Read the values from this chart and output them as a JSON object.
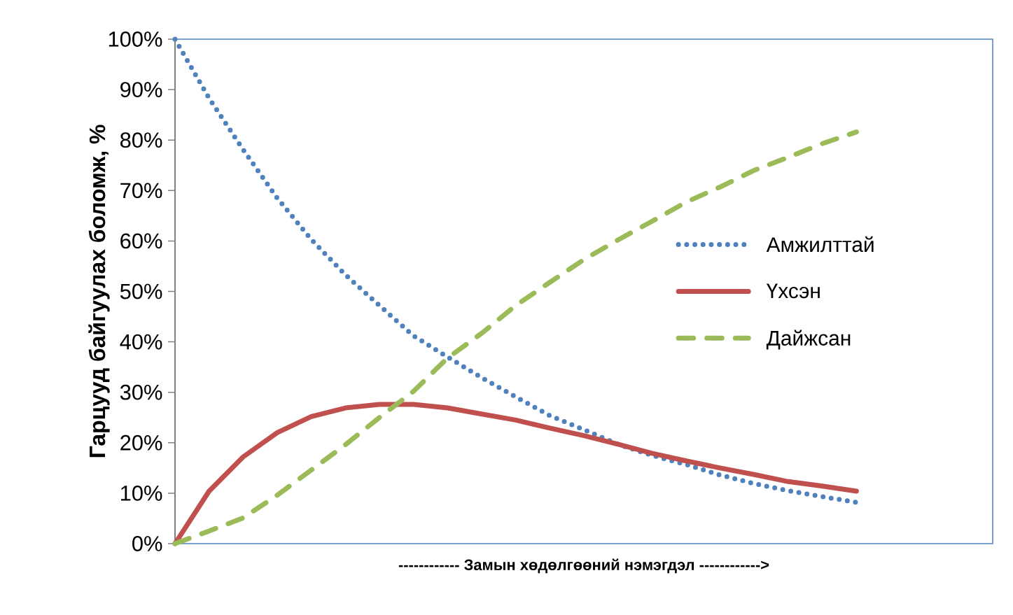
{
  "chart_data": {
    "type": "line",
    "xlabel": "------------   Замын хөдөлгөөний нэмэгдэл   ------------>",
    "ylabel": "Гарцууд байгуулах боломж, %",
    "categories": [
      null,
      null,
      null,
      null,
      null,
      null,
      null,
      null,
      null,
      null,
      null,
      null,
      null,
      null,
      null,
      null,
      null,
      null,
      null,
      null,
      null
    ],
    "series": [
      {
        "name": "Амжилттай",
        "color": "#4f81bd",
        "line_style": "dotted",
        "values": [
          100,
          88.3,
          78.1,
          68.5,
          60.3,
          53.3,
          47.2,
          41.2,
          37.0,
          32.9,
          29.1,
          25.4,
          22.6,
          19.7,
          17.5,
          15.7,
          13.6,
          11.9,
          10.5,
          9.3,
          8.2
        ]
      },
      {
        "name": "Үхсэн",
        "color": "#c0504d",
        "line_style": "solid",
        "values": [
          0,
          10.4,
          17.2,
          22.0,
          25.2,
          26.9,
          27.6,
          27.6,
          26.9,
          25.7,
          24.5,
          22.9,
          21.4,
          19.7,
          17.9,
          16.4,
          15.0,
          13.7,
          12.3,
          11.4,
          10.4
        ]
      },
      {
        "name": "Дайжсан",
        "color": "#9bbb59",
        "line_style": "dashed",
        "values": [
          0,
          2.5,
          5.1,
          9.6,
          14.6,
          19.6,
          25.0,
          30.2,
          36.8,
          41.7,
          47.2,
          51.8,
          56.3,
          60.2,
          63.9,
          67.7,
          70.7,
          74.0,
          76.6,
          79.3,
          81.6
        ]
      }
    ],
    "ylim": [
      0,
      100
    ],
    "yticks": [
      {
        "value": 0,
        "label": "0%"
      },
      {
        "value": 10,
        "label": "10%"
      },
      {
        "value": 20,
        "label": "20%"
      },
      {
        "value": 30,
        "label": "30%"
      },
      {
        "value": 40,
        "label": "40%"
      },
      {
        "value": 50,
        "label": "50%"
      },
      {
        "value": 60,
        "label": "60%"
      },
      {
        "value": 70,
        "label": "70%"
      },
      {
        "value": 80,
        "label": "80%"
      },
      {
        "value": 90,
        "label": "90%"
      },
      {
        "value": 100,
        "label": "100%"
      }
    ],
    "legend": "right"
  }
}
